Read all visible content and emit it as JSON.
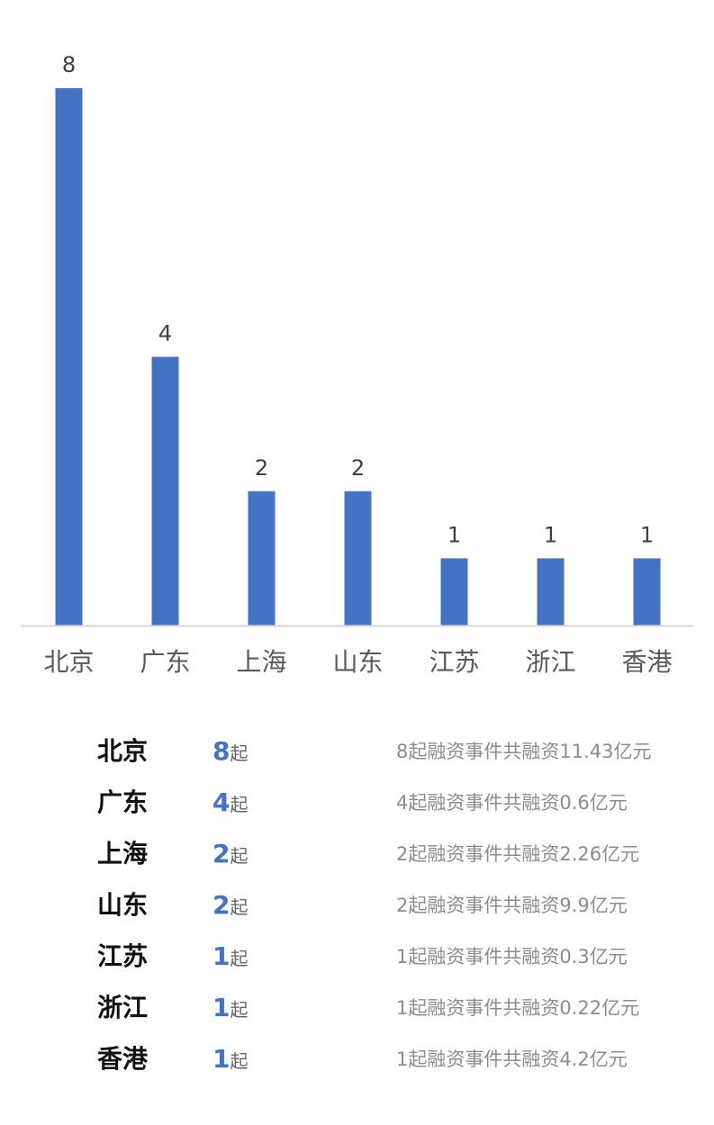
{
  "chart_data": {
    "type": "bar",
    "categories": [
      "北京",
      "广东",
      "上海",
      "山东",
      "江苏",
      "浙江",
      "香港"
    ],
    "values": [
      8,
      4,
      2,
      2,
      1,
      1,
      1
    ],
    "title": "",
    "xlabel": "",
    "ylabel": "",
    "ylim": [
      0,
      8
    ],
    "grid": false,
    "data_labels": true,
    "bar_color": "#4472c4",
    "axis_color": "#d9d9d9"
  },
  "summary": {
    "unit": "起",
    "rows": [
      {
        "region": "北京",
        "count": "8",
        "desc": "8起融资事件共融资11.43亿元"
      },
      {
        "region": "广东",
        "count": "4",
        "desc": "4起融资事件共融资0.6亿元"
      },
      {
        "region": "上海",
        "count": "2",
        "desc": "2起融资事件共融资2.26亿元"
      },
      {
        "region": "山东",
        "count": "2",
        "desc": "2起融资事件共融资9.9亿元"
      },
      {
        "region": "江苏",
        "count": "1",
        "desc": "1起融资事件共融资0.3亿元"
      },
      {
        "region": "浙江",
        "count": "1",
        "desc": "1起融资事件共融资0.22亿元"
      },
      {
        "region": "香港",
        "count": "1",
        "desc": "1起融资事件共融资4.2亿元"
      }
    ]
  }
}
